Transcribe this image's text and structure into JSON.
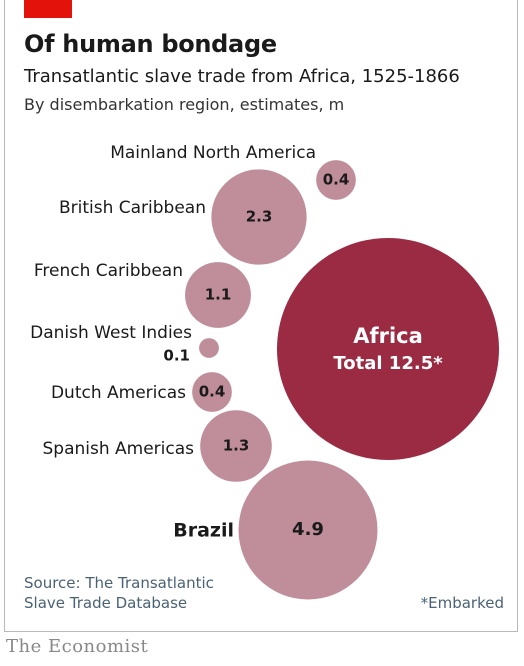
{
  "header": {
    "title": "Of human bondage",
    "subtitle": "Transatlantic slave trade from Africa, 1525-1866",
    "subsubtitle": "By disembarkation region, estimates, m"
  },
  "chart_data": {
    "type": "bubble",
    "unit": "m",
    "total": {
      "name": "Africa",
      "label": "Total 12.5*",
      "value": 12.5,
      "color": "#9b2b43"
    },
    "series": [
      {
        "name": "Mainland North America",
        "value": 0.4,
        "label": "0.4"
      },
      {
        "name": "British Caribbean",
        "value": 2.3,
        "label": "2.3"
      },
      {
        "name": "French Caribbean",
        "value": 1.1,
        "label": "1.1"
      },
      {
        "name": "Danish West Indies",
        "value": 0.1,
        "label": "0.1"
      },
      {
        "name": "Dutch Americas",
        "value": 0.4,
        "label": "0.4"
      },
      {
        "name": "Spanish Americas",
        "value": 1.3,
        "label": "1.3"
      },
      {
        "name": "Brazil",
        "value": 4.9,
        "label": "4.9"
      }
    ],
    "bubble_color": "#c08d9b"
  },
  "footer": {
    "source_line1": "Source: The Transatlantic",
    "source_line2": "Slave Trade Database",
    "footnote": "*Embarked",
    "brand": "The Economist"
  }
}
